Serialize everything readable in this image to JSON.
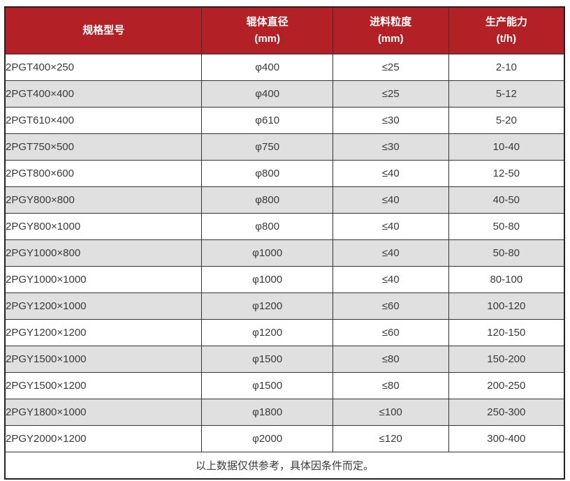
{
  "colors": {
    "header_bg": "#b32025",
    "header_text": "#ffffff",
    "row_alt_bg": "#e0e0e0",
    "row_bg": "#ffffff",
    "border": "#333333",
    "text": "#3a3a3a"
  },
  "table": {
    "header": {
      "model_label": "规格型号",
      "cols": [
        {
          "label": "辊体直径",
          "unit": "(mm)"
        },
        {
          "label": "进料粒度",
          "unit": "(mm)"
        },
        {
          "label": "生产能力",
          "unit": "(t/h)"
        }
      ]
    },
    "rows": [
      {
        "model": "2PGT400×250",
        "diameter": "φ400",
        "feed": "≤25",
        "capacity": "2-10"
      },
      {
        "model": "2PGT400×400",
        "diameter": "φ400",
        "feed": "≤25",
        "capacity": "5-12"
      },
      {
        "model": "2PGT610×400",
        "diameter": "φ610",
        "feed": "≤30",
        "capacity": "5-20"
      },
      {
        "model": "2PGT750×500",
        "diameter": "φ750",
        "feed": "≤30",
        "capacity": "10-40"
      },
      {
        "model": "2PGT800×600",
        "diameter": "φ800",
        "feed": "≤40",
        "capacity": "12-50"
      },
      {
        "model": "2PGY800×800",
        "diameter": "φ800",
        "feed": "≤40",
        "capacity": "40-50"
      },
      {
        "model": "2PGY800×1000",
        "diameter": "φ800",
        "feed": "≤40",
        "capacity": "50-80"
      },
      {
        "model": "2PGY1000×800",
        "diameter": "φ1000",
        "feed": "≤40",
        "capacity": "50-80"
      },
      {
        "model": "2PGY1000×1000",
        "diameter": "φ1000",
        "feed": "≤40",
        "capacity": "80-100"
      },
      {
        "model": "2PGY1200×1000",
        "diameter": "φ1200",
        "feed": "≤60",
        "capacity": "100-120"
      },
      {
        "model": "2PGY1200×1200",
        "diameter": "φ1200",
        "feed": "≤60",
        "capacity": "120-150"
      },
      {
        "model": "2PGY1500×1000",
        "diameter": "φ1500",
        "feed": "≤80",
        "capacity": "150-200"
      },
      {
        "model": "2PGY1500×1200",
        "diameter": "φ1500",
        "feed": "≤80",
        "capacity": "200-250"
      },
      {
        "model": "2PGY1800×1000",
        "diameter": "φ1800",
        "feed": "≤100",
        "capacity": "250-300"
      },
      {
        "model": "2PGY2000×1200",
        "diameter": "φ2000",
        "feed": "≤120",
        "capacity": "300-400"
      }
    ],
    "footer": {
      "note": "以上数据仅供参考，具体因条件而定。"
    }
  }
}
